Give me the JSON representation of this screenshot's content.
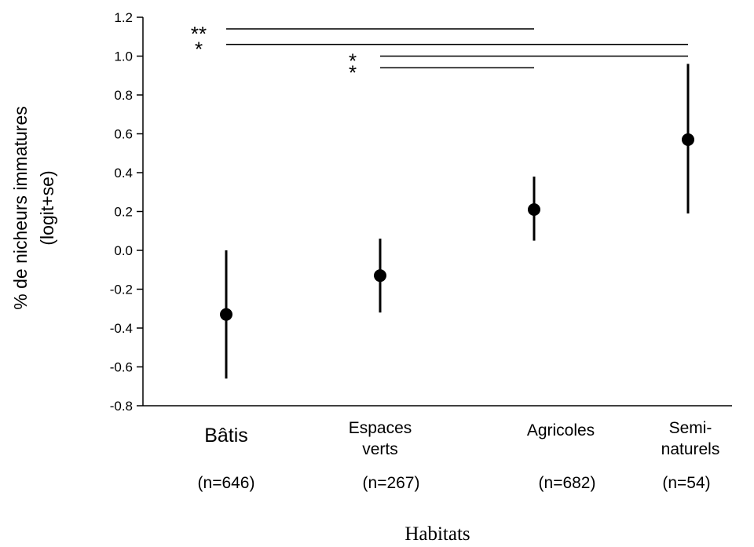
{
  "chart_data": {
    "type": "scatter",
    "title": "",
    "xlabel": "Habitats",
    "ylabel_lines": [
      "% de nicheurs immatures",
      "(logit+se)"
    ],
    "ylim": [
      -0.8,
      1.2
    ],
    "yticks": [
      "-0.8",
      "-0.6",
      "-0.4",
      "-0.2",
      "0.0",
      "0.2",
      "0.4",
      "0.6",
      "0.8",
      "1.0",
      "1.2"
    ],
    "grid": false,
    "categories": [
      {
        "lines": [
          "Bâtis"
        ],
        "n": "(n=646)",
        "value": -0.33,
        "error_low": -0.66,
        "error_high": 0.0
      },
      {
        "lines": [
          "Espaces",
          "verts"
        ],
        "n": "(n=267)",
        "value": -0.13,
        "error_low": -0.32,
        "error_high": 0.06
      },
      {
        "lines": [
          "Agricoles"
        ],
        "n": "(n=682)",
        "value": 0.21,
        "error_low": 0.05,
        "error_high": 0.38
      },
      {
        "lines": [
          "Semi-",
          "naturels"
        ],
        "n": "(n=54)",
        "value": 0.57,
        "error_low": 0.19,
        "error_high": 0.96
      }
    ],
    "significance": [
      {
        "label": "**",
        "from": "Bâtis",
        "to": "Agricoles",
        "y": 1.14
      },
      {
        "label": "*",
        "from": "Bâtis",
        "to": "Semi-naturels",
        "y": 1.06
      },
      {
        "label": "*",
        "from": "Espaces verts",
        "to": "Semi-naturels",
        "y": 1.0
      },
      {
        "label": "*",
        "from": "Espaces verts",
        "to": "Agricoles",
        "y": 0.94
      }
    ]
  }
}
